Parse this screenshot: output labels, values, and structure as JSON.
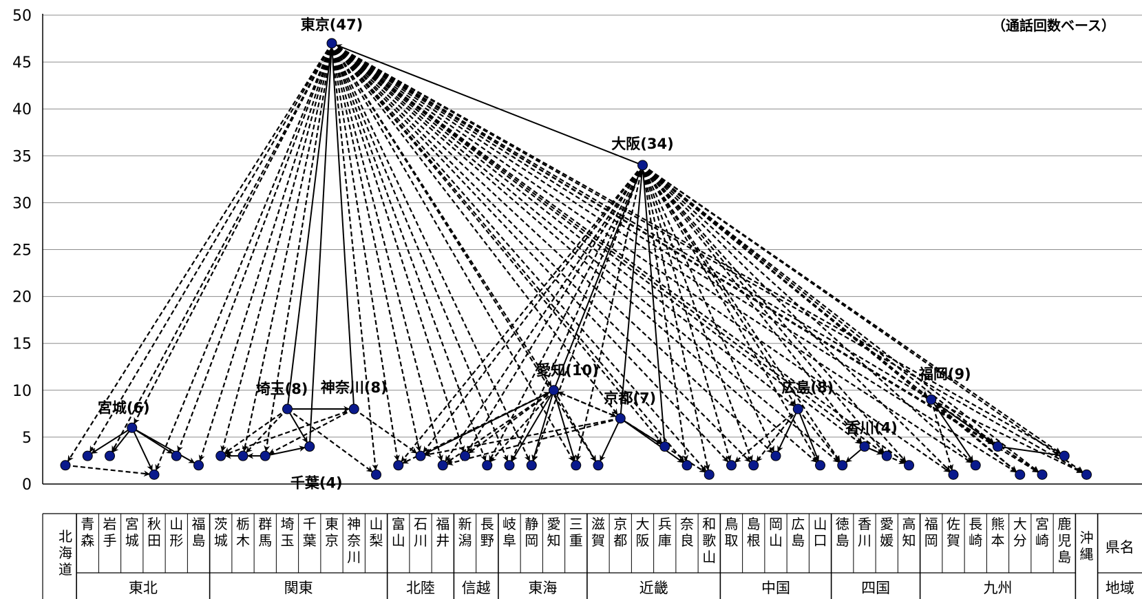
{
  "chart_data": {
    "type": "scatter",
    "note": "（通話回数ベース）",
    "ylim": [
      0,
      50
    ],
    "yticks": [
      0,
      5,
      10,
      15,
      20,
      25,
      30,
      35,
      40,
      45,
      50
    ],
    "grid": true,
    "row_labels": {
      "pref": "県名",
      "region": "地域"
    },
    "prefectures": [
      {
        "name": "北海道",
        "value": 2
      },
      {
        "name": "青森",
        "value": 3
      },
      {
        "name": "岩手",
        "value": 3
      },
      {
        "name": "宮城",
        "value": 6
      },
      {
        "name": "秋田",
        "value": 1
      },
      {
        "name": "山形",
        "value": 3
      },
      {
        "name": "福島",
        "value": 2
      },
      {
        "name": "茨城",
        "value": 3
      },
      {
        "name": "栃木",
        "value": 3
      },
      {
        "name": "群馬",
        "value": 3
      },
      {
        "name": "埼玉",
        "value": 8
      },
      {
        "name": "千葉",
        "value": 4
      },
      {
        "name": "東京",
        "value": 47
      },
      {
        "name": "神奈川",
        "value": 8
      },
      {
        "name": "山梨",
        "value": 1
      },
      {
        "name": "富山",
        "value": 2
      },
      {
        "name": "石川",
        "value": 3
      },
      {
        "name": "福井",
        "value": 2
      },
      {
        "name": "新潟",
        "value": 3
      },
      {
        "name": "長野",
        "value": 2
      },
      {
        "name": "岐阜",
        "value": 2
      },
      {
        "name": "静岡",
        "value": 2
      },
      {
        "name": "愛知",
        "value": 10
      },
      {
        "name": "三重",
        "value": 2
      },
      {
        "name": "滋賀",
        "value": 2
      },
      {
        "name": "京都",
        "value": 7
      },
      {
        "name": "大阪",
        "value": 34
      },
      {
        "name": "兵庫",
        "value": 4
      },
      {
        "name": "奈良",
        "value": 2
      },
      {
        "name": "和歌山",
        "value": 1
      },
      {
        "name": "鳥取",
        "value": 2
      },
      {
        "name": "島根",
        "value": 2
      },
      {
        "name": "岡山",
        "value": 3
      },
      {
        "name": "広島",
        "value": 8
      },
      {
        "name": "山口",
        "value": 2
      },
      {
        "name": "徳島",
        "value": 2
      },
      {
        "name": "香川",
        "value": 4
      },
      {
        "name": "愛媛",
        "value": 3
      },
      {
        "name": "高知",
        "value": 2
      },
      {
        "name": "福岡",
        "value": 9
      },
      {
        "name": "佐賀",
        "value": 1
      },
      {
        "name": "長崎",
        "value": 2
      },
      {
        "name": "熊本",
        "value": 4
      },
      {
        "name": "大分",
        "value": 1
      },
      {
        "name": "宮崎",
        "value": 1
      },
      {
        "name": "鹿児島",
        "value": 3
      },
      {
        "name": "沖縄",
        "value": 1
      }
    ],
    "regions": [
      {
        "name": "北海道",
        "start": 0,
        "end": 0
      },
      {
        "name": "東北",
        "start": 1,
        "end": 6
      },
      {
        "name": "関東",
        "start": 7,
        "end": 14
      },
      {
        "name": "北陸",
        "start": 15,
        "end": 17
      },
      {
        "name": "信越",
        "start": 18,
        "end": 19
      },
      {
        "name": "東海",
        "start": 20,
        "end": 23
      },
      {
        "name": "近畿",
        "start": 24,
        "end": 29
      },
      {
        "name": "中国",
        "start": 30,
        "end": 34
      },
      {
        "name": "四国",
        "start": 35,
        "end": 38
      },
      {
        "name": "九州",
        "start": 39,
        "end": 45
      },
      {
        "name": "沖縄",
        "start": 46,
        "end": 46
      }
    ],
    "annotations": [
      {
        "index": 12,
        "label": "東京(47)"
      },
      {
        "index": 26,
        "label": "大阪(34)"
      },
      {
        "index": 3,
        "label": "宮城(6)"
      },
      {
        "index": 10,
        "label": "埼玉(8)"
      },
      {
        "index": 13,
        "label": "神奈川(8)"
      },
      {
        "index": 11,
        "label": "千葉(4)"
      },
      {
        "index": 22,
        "label": "愛知(10)"
      },
      {
        "index": 25,
        "label": "京都(7)"
      },
      {
        "index": 33,
        "label": "広島(8)"
      },
      {
        "index": 36,
        "label": "香川(4)"
      },
      {
        "index": 39,
        "label": "福岡(9)"
      }
    ],
    "links_solid": [
      [
        26,
        12
      ],
      [
        10,
        12
      ],
      [
        11,
        12
      ],
      [
        13,
        12
      ],
      [
        10,
        13
      ],
      [
        10,
        11
      ],
      [
        27,
        26
      ],
      [
        25,
        26
      ],
      [
        22,
        26
      ],
      [
        25,
        27
      ],
      [
        25,
        28
      ],
      [
        25,
        24
      ],
      [
        3,
        1
      ],
      [
        3,
        2
      ],
      [
        3,
        5
      ],
      [
        3,
        6
      ],
      [
        3,
        4
      ],
      [
        22,
        21
      ],
      [
        22,
        20
      ],
      [
        22,
        23
      ],
      [
        33,
        32
      ],
      [
        33,
        34
      ],
      [
        36,
        35
      ],
      [
        36,
        37
      ],
      [
        39,
        42
      ],
      [
        39,
        41
      ],
      [
        42,
        45
      ],
      [
        9,
        8
      ],
      [
        8,
        7
      ],
      [
        9,
        11
      ],
      [
        16,
        22
      ]
    ],
    "links_dashed": [
      [
        12,
        0
      ],
      [
        12,
        1
      ],
      [
        12,
        2
      ],
      [
        12,
        3
      ],
      [
        12,
        4
      ],
      [
        12,
        5
      ],
      [
        12,
        6
      ],
      [
        12,
        7
      ],
      [
        12,
        8
      ],
      [
        12,
        9
      ],
      [
        12,
        14
      ],
      [
        12,
        15
      ],
      [
        12,
        16
      ],
      [
        12,
        17
      ],
      [
        12,
        18
      ],
      [
        12,
        19
      ],
      [
        12,
        20
      ],
      [
        12,
        21
      ],
      [
        12,
        22
      ],
      [
        12,
        23
      ],
      [
        12,
        24
      ],
      [
        12,
        25
      ],
      [
        12,
        27
      ],
      [
        12,
        28
      ],
      [
        12,
        29
      ],
      [
        12,
        30
      ],
      [
        12,
        31
      ],
      [
        12,
        32
      ],
      [
        12,
        33
      ],
      [
        12,
        34
      ],
      [
        12,
        35
      ],
      [
        12,
        36
      ],
      [
        12,
        37
      ],
      [
        12,
        38
      ],
      [
        12,
        39
      ],
      [
        12,
        40
      ],
      [
        12,
        41
      ],
      [
        12,
        42
      ],
      [
        12,
        43
      ],
      [
        12,
        44
      ],
      [
        12,
        45
      ],
      [
        12,
        46
      ],
      [
        26,
        16
      ],
      [
        26,
        20
      ],
      [
        26,
        21
      ],
      [
        26,
        23
      ],
      [
        26,
        28
      ],
      [
        26,
        29
      ],
      [
        26,
        30
      ],
      [
        26,
        31
      ],
      [
        26,
        32
      ],
      [
        26,
        33
      ],
      [
        26,
        34
      ],
      [
        26,
        35
      ],
      [
        26,
        36
      ],
      [
        26,
        37
      ],
      [
        26,
        38
      ],
      [
        26,
        39
      ],
      [
        26,
        40
      ],
      [
        26,
        41
      ],
      [
        26,
        42
      ],
      [
        26,
        43
      ],
      [
        26,
        44
      ],
      [
        26,
        45
      ],
      [
        26,
        46
      ],
      [
        26,
        18
      ],
      [
        26,
        19
      ],
      [
        26,
        17
      ],
      [
        26,
        15
      ],
      [
        0,
        4
      ],
      [
        10,
        7
      ],
      [
        10,
        8
      ],
      [
        10,
        14
      ],
      [
        13,
        7
      ],
      [
        13,
        9
      ],
      [
        13,
        16
      ],
      [
        22,
        15
      ],
      [
        22,
        16
      ],
      [
        22,
        17
      ],
      [
        22,
        18
      ],
      [
        22,
        19
      ],
      [
        22,
        24
      ],
      [
        22,
        25
      ],
      [
        25,
        16
      ],
      [
        25,
        17
      ],
      [
        25,
        22
      ],
      [
        25,
        29
      ],
      [
        33,
        30
      ],
      [
        33,
        31
      ],
      [
        33,
        35
      ],
      [
        36,
        38
      ],
      [
        39,
        40
      ],
      [
        39,
        43
      ],
      [
        39,
        44
      ],
      [
        39,
        46
      ]
    ]
  }
}
